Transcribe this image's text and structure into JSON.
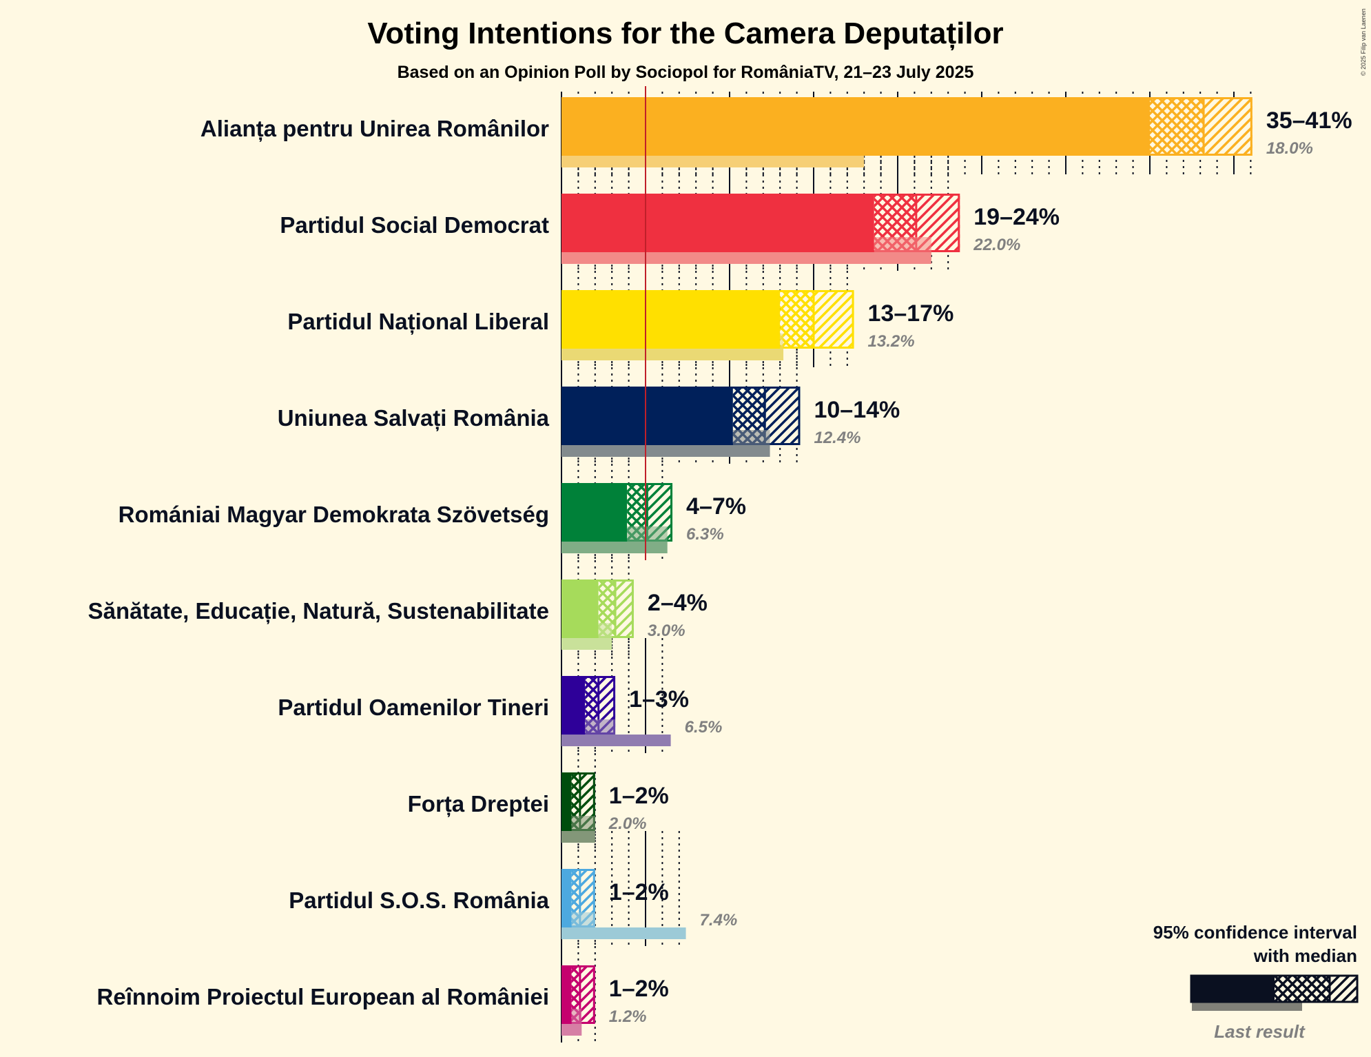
{
  "chart_data": {
    "type": "bar",
    "orientation": "horizontal",
    "title": "Voting Intentions for the Camera Deputaților",
    "subtitle": "Based on an Opinion Poll by Sociopol for RomâniaTV, 21–23 July 2025",
    "copyright": "© 2025 Filip van Laenen",
    "xlabel": "",
    "ylabel": "",
    "xlim": [
      0,
      41
    ],
    "grid": true,
    "grid_minor_step": 1,
    "grid_major_step": 5,
    "threshold": 5,
    "threshold_color": "#C0202A",
    "legend": {
      "placement": "bottom-right",
      "title_line1": "95% confidence interval",
      "title_line2": "with median",
      "last_result_label": "Last result"
    },
    "categories": [
      "Alianța pentru Unirea Românilor",
      "Partidul Social Democrat",
      "Partidul Național Liberal",
      "Uniunea Salvați România",
      "Romániai Magyar Demokrata Szövetség",
      "Sănătate, Educație, Natură, Sustenabilitate",
      "Partidul Oamenilor Tineri",
      "Forța Dreptei",
      "Partidul S.O.S. România",
      "Reînnoim Proiectul European al României"
    ],
    "series": [
      {
        "name": "Alianța pentru Unirea Românilor",
        "color": "#FBB020",
        "last_color": "#F6CF76",
        "ci_low": 35.0,
        "median": 38.2,
        "ci_high": 41.1,
        "range_label": "35–41%",
        "last_result": 18.0,
        "last_label": "18.0%"
      },
      {
        "name": "Partidul Social Democrat",
        "color": "#EF3040",
        "last_color": "#F28A88",
        "ci_low": 18.6,
        "median": 21.1,
        "ci_high": 23.7,
        "range_label": "19–24%",
        "last_result": 22.0,
        "last_label": "22.0%"
      },
      {
        "name": "Partidul Național Liberal",
        "color": "#FFE000",
        "last_color": "#EAD974",
        "ci_low": 13.0,
        "median": 15.0,
        "ci_high": 17.4,
        "range_label": "13–17%",
        "last_result": 13.2,
        "last_label": "13.2%"
      },
      {
        "name": "Uniunea Salvați România",
        "color": "#00205A",
        "last_color": "#838B8E",
        "ci_low": 10.2,
        "median": 12.1,
        "ci_high": 14.2,
        "range_label": "10–14%",
        "last_result": 12.4,
        "last_label": "12.4%"
      },
      {
        "name": "Romániai Magyar Demokrata Szövetség",
        "color": "#008139",
        "last_color": "#80AD86",
        "ci_low": 3.9,
        "median": 5.1,
        "ci_high": 6.6,
        "range_label": "4–7%",
        "last_result": 6.3,
        "last_label": "6.3%"
      },
      {
        "name": "Sănătate, Educație, Natură, Sustenabilitate",
        "color": "#A6DB5B",
        "last_color": "#C9E19A",
        "ci_low": 2.2,
        "median": 3.2,
        "ci_high": 4.3,
        "range_label": "2–4%",
        "last_result": 3.0,
        "last_label": "3.0%"
      },
      {
        "name": "Partidul Oamenilor Tineri",
        "color": "#2E0099",
        "last_color": "#907CB0",
        "ci_low": 1.4,
        "median": 2.2,
        "ci_high": 3.2,
        "range_label": "1–3%",
        "last_result": 6.5,
        "last_label": "6.5%"
      },
      {
        "name": "Forța Dreptei",
        "color": "#004D0D",
        "last_color": "#839779",
        "ci_low": 0.6,
        "median": 1.1,
        "ci_high": 2.0,
        "range_label": "1–2%",
        "last_result": 2.0,
        "last_label": "2.0%"
      },
      {
        "name": "Partidul S.O.S. România",
        "color": "#4DA9DF",
        "last_color": "#9CCAD7",
        "ci_low": 0.6,
        "median": 1.1,
        "ci_high": 2.0,
        "range_label": "1–2%",
        "last_result": 7.4,
        "last_label": "7.4%"
      },
      {
        "name": "Reînnoim Proiectul European al României",
        "color": "#C5006E",
        "last_color": "#D67FA5",
        "ci_low": 0.6,
        "median": 1.1,
        "ci_high": 2.0,
        "range_label": "1–2%",
        "last_result": 1.2,
        "last_label": "1.2%"
      }
    ]
  }
}
